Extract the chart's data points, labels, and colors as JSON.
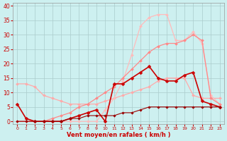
{
  "background_color": "#cdf0f0",
  "grid_color": "#aacccc",
  "xlabel": "Vent moyen/en rafales ( km/h )",
  "xlabel_color": "#cc0000",
  "tick_color": "#cc0000",
  "xlim": [
    -0.5,
    23.5
  ],
  "ylim": [
    -1,
    41
  ],
  "yticks": [
    0,
    5,
    10,
    15,
    20,
    25,
    30,
    35,
    40
  ],
  "xticks": [
    0,
    1,
    2,
    3,
    4,
    5,
    6,
    7,
    8,
    9,
    10,
    11,
    12,
    13,
    14,
    15,
    16,
    17,
    18,
    19,
    20,
    21,
    22,
    23
  ],
  "series": [
    {
      "x": [
        0,
        1,
        2,
        3,
        4,
        5,
        6,
        7,
        8,
        9,
        10,
        11,
        12,
        13,
        14,
        15,
        16,
        17,
        18,
        19,
        20,
        21,
        22,
        23
      ],
      "y": [
        13,
        13,
        12,
        9,
        8,
        7,
        6,
        6,
        6,
        6,
        7,
        8,
        9,
        10,
        11,
        12,
        14,
        15,
        15,
        15,
        9,
        8,
        8,
        8
      ],
      "color": "#ffaaaa",
      "linewidth": 0.9,
      "marker": "D",
      "markersize": 2.0
    },
    {
      "x": [
        0,
        1,
        2,
        3,
        4,
        5,
        6,
        7,
        8,
        9,
        10,
        11,
        12,
        13,
        14,
        15,
        16,
        17,
        18,
        19,
        20,
        21,
        22,
        23
      ],
      "y": [
        0,
        0,
        0,
        0,
        0,
        0,
        0,
        0,
        0,
        0,
        4,
        8,
        14,
        23,
        33,
        36,
        37,
        37,
        28,
        28,
        31,
        27,
        9,
        6
      ],
      "color": "#ffbbbb",
      "linewidth": 0.9,
      "marker": "D",
      "markersize": 2.0
    },
    {
      "x": [
        0,
        1,
        2,
        3,
        4,
        5,
        6,
        7,
        8,
        9,
        10,
        11,
        12,
        13,
        14,
        15,
        16,
        17,
        18,
        19,
        20,
        21,
        22,
        23
      ],
      "y": [
        0,
        0,
        0,
        0,
        1,
        2,
        3,
        5,
        6,
        8,
        10,
        12,
        15,
        18,
        21,
        24,
        26,
        27,
        27,
        28,
        30,
        28,
        8,
        6
      ],
      "color": "#ff8888",
      "linewidth": 0.9,
      "marker": "D",
      "markersize": 2.0
    },
    {
      "x": [
        0,
        1,
        2,
        3,
        4,
        5,
        6,
        7,
        8,
        9,
        10,
        11,
        12,
        13,
        14,
        15,
        16,
        17,
        18,
        19,
        20,
        21,
        22,
        23
      ],
      "y": [
        6,
        1,
        0,
        0,
        0,
        0,
        1,
        2,
        3,
        4,
        0,
        13,
        13,
        15,
        17,
        19,
        15,
        14,
        14,
        16,
        17,
        7,
        6,
        5
      ],
      "color": "#cc0000",
      "linewidth": 1.2,
      "marker": "D",
      "markersize": 2.5
    },
    {
      "x": [
        0,
        1,
        2,
        3,
        4,
        5,
        6,
        7,
        8,
        9,
        10,
        11,
        12,
        13,
        14,
        15,
        16,
        17,
        18,
        19,
        20,
        21,
        22,
        23
      ],
      "y": [
        0,
        0,
        0,
        0,
        0,
        0,
        1,
        1,
        2,
        2,
        2,
        2,
        3,
        3,
        4,
        5,
        5,
        5,
        5,
        5,
        5,
        5,
        5,
        5
      ],
      "color": "#990000",
      "linewidth": 0.8,
      "marker": "D",
      "markersize": 1.8
    }
  ]
}
